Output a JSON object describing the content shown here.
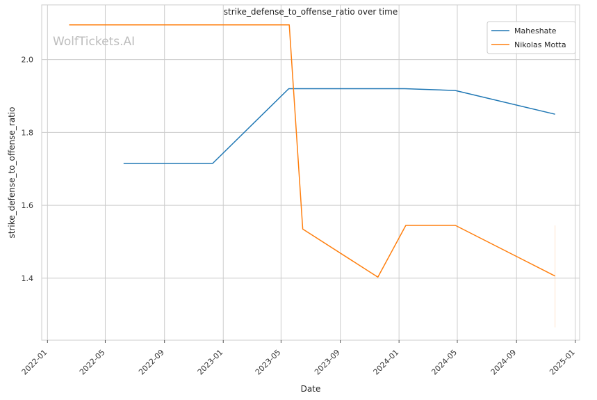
{
  "chart_data": {
    "type": "line",
    "title": "strike_defense_to_offense_ratio over time",
    "xlabel": "Date",
    "ylabel": "strike_defense_to_offense_ratio",
    "watermark": "WolfTickets.AI",
    "x_ticks": [
      "2022-01",
      "2022-05",
      "2022-09",
      "2023-01",
      "2023-05",
      "2023-09",
      "2024-01",
      "2024-05",
      "2024-09",
      "2025-01"
    ],
    "y_ticks": [
      "1.4",
      "1.6",
      "1.8",
      "2.0"
    ],
    "xlim": [
      "2021-12-20",
      "2025-01-10"
    ],
    "ylim": [
      1.23,
      2.15
    ],
    "grid": true,
    "legend_position": "top-right",
    "series": [
      {
        "name": "Maheshate",
        "color": "#1f77b4",
        "points": [
          [
            "2022-06-08",
            1.715
          ],
          [
            "2022-12-10",
            1.715
          ],
          [
            "2023-05-17",
            1.92
          ],
          [
            "2024-01-13",
            1.92
          ],
          [
            "2024-04-27",
            1.915
          ],
          [
            "2024-11-20",
            1.85
          ]
        ]
      },
      {
        "name": "Nikolas Motta",
        "color": "#ff7f0e",
        "points": [
          [
            "2022-02-15",
            2.095
          ],
          [
            "2023-05-18",
            2.095
          ],
          [
            "2023-06-15",
            1.535
          ],
          [
            "2023-11-18",
            1.403
          ],
          [
            "2024-01-15",
            1.545
          ],
          [
            "2024-04-27",
            1.545
          ],
          [
            "2024-11-20",
            1.406
          ]
        ]
      }
    ],
    "annotations": [
      {
        "type": "vertical-range",
        "date": "2024-11-20",
        "y_from": 1.265,
        "y_to": 1.545,
        "color": "#ff7f0e",
        "opacity": 0.2
      }
    ]
  }
}
